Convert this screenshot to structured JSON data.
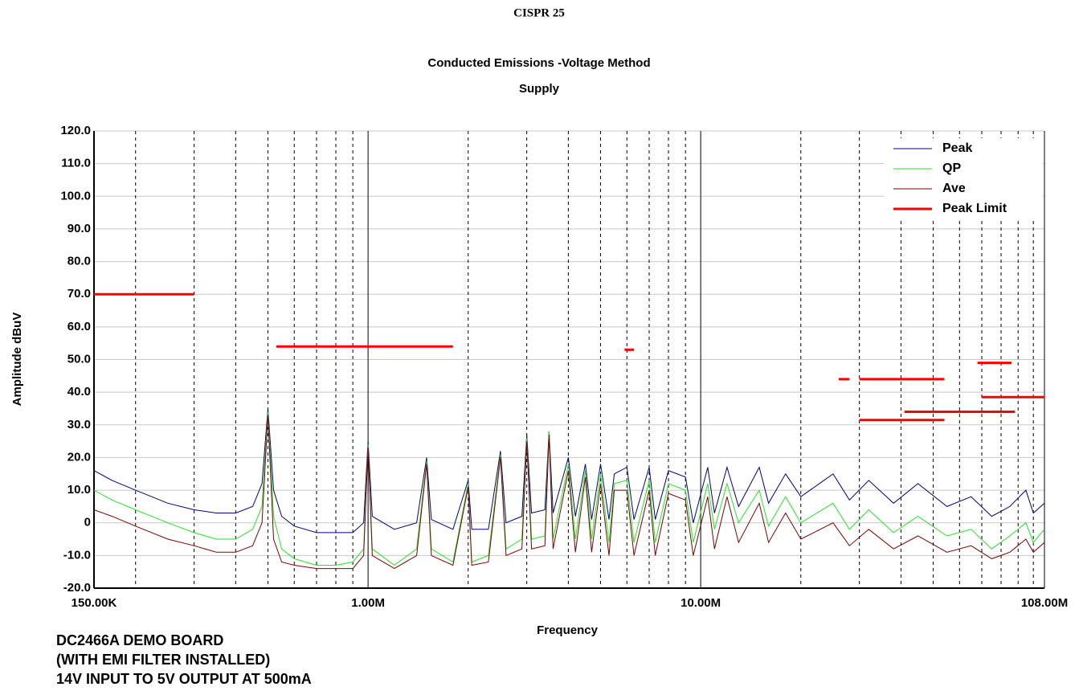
{
  "chart_data": {
    "type": "line",
    "title": "CISPR 25",
    "subtitle": "Conducted Emissions -Voltage Method",
    "subtitle2": "Supply",
    "x_label": "Frequency",
    "y_label": "Amplitude dBuV",
    "annotations": [
      "DC2466A DEMO BOARD",
      "(WITH EMI FILTER INSTALLED)",
      "14V INPUT TO 5V OUTPUT AT 500mA"
    ],
    "xscale": "log",
    "xlim": [
      150000,
      108000000
    ],
    "ylim": [
      -20,
      120
    ],
    "xticks": [
      {
        "value": 150000,
        "label": "150.00K"
      },
      {
        "value": 1000000,
        "label": "1.00M"
      },
      {
        "value": 10000000,
        "label": "10.00M"
      },
      {
        "value": 108000000,
        "label": "108.00M"
      }
    ],
    "x_minor_grid": [
      200000,
      300000,
      400000,
      500000,
      600000,
      700000,
      800000,
      900000,
      2000000,
      3000000,
      4000000,
      5000000,
      6000000,
      7000000,
      8000000,
      9000000,
      20000000,
      30000000,
      40000000,
      50000000,
      60000000,
      70000000,
      80000000,
      90000000,
      100000000
    ],
    "yticks": [
      {
        "value": -20,
        "label": "-20.0"
      },
      {
        "value": -10,
        "label": "-10.0"
      },
      0,
      {
        "value": 10,
        "label": "10.0"
      },
      {
        "value": 20,
        "label": "20.0"
      },
      {
        "value": 30,
        "label": "30.0"
      },
      {
        "value": 40,
        "label": "40.0"
      },
      {
        "value": 50,
        "label": "50.0"
      },
      {
        "value": 60,
        "label": "60.0"
      },
      {
        "value": 70,
        "label": "70.0"
      },
      {
        "value": 80,
        "label": "80.0"
      },
      {
        "value": 90,
        "label": "90.0"
      },
      {
        "value": 100,
        "label": "100.0"
      },
      {
        "value": 110,
        "label": "110.0"
      },
      {
        "value": 120,
        "label": "120.0"
      }
    ],
    "grid": true,
    "legend": "top-right",
    "x": [
      150000,
      170000,
      200000,
      250000,
      300000,
      350000,
      400000,
      450000,
      480000,
      500000,
      520000,
      550000,
      600000,
      700000,
      800000,
      900000,
      970000,
      1000000,
      1030000,
      1200000,
      1400000,
      1500000,
      1550000,
      1800000,
      2000000,
      2050000,
      2300000,
      2500000,
      2600000,
      2900000,
      3000000,
      3100000,
      3400000,
      3500000,
      3600000,
      4000000,
      4200000,
      4500000,
      4700000,
      5000000,
      5300000,
      5500000,
      6000000,
      6300000,
      7000000,
      7300000,
      8000000,
      9000000,
      9500000,
      10500000,
      11000000,
      12000000,
      13000000,
      15000000,
      16000000,
      18000000,
      20000000,
      25000000,
      28000000,
      32000000,
      38000000,
      45000000,
      55000000,
      65000000,
      75000000,
      85000000,
      95000000,
      100000000,
      108000000
    ],
    "series": [
      {
        "name": "Peak",
        "color": "#000080",
        "values": [
          16,
          13,
          10,
          6,
          4,
          3,
          3,
          5,
          12,
          35,
          10,
          2,
          -1,
          -3,
          -3,
          -3,
          0,
          25,
          2,
          -2,
          0,
          20,
          1,
          -2,
          13,
          -2,
          -2,
          22,
          0,
          2,
          27,
          3,
          4,
          28,
          3,
          20,
          2,
          18,
          1,
          18,
          1,
          15,
          17,
          1,
          17,
          1,
          16,
          14,
          0,
          17,
          3,
          17,
          5,
          17,
          6,
          15,
          8,
          15,
          7,
          13,
          6,
          12,
          5,
          8,
          2,
          5,
          10,
          3,
          6
        ]
      },
      {
        "name": "QP",
        "color": "#22e622",
        "values": [
          10,
          7,
          4,
          0,
          -3,
          -5,
          -5,
          -2,
          5,
          34,
          2,
          -8,
          -11,
          -13,
          -13,
          -12,
          -8,
          24,
          -8,
          -13,
          -8,
          19,
          -8,
          -12,
          12,
          -12,
          -10,
          21,
          -8,
          -5,
          26,
          -5,
          -4,
          28,
          -5,
          18,
          -5,
          16,
          -5,
          15,
          -6,
          12,
          13,
          -6,
          13,
          -6,
          12,
          10,
          -6,
          12,
          -2,
          12,
          0,
          10,
          -1,
          8,
          0,
          6,
          -2,
          4,
          -3,
          2,
          -4,
          -2,
          -8,
          -4,
          0,
          -6,
          -2
        ]
      },
      {
        "name": "Ave",
        "color": "#800000",
        "values": [
          4,
          2,
          -1,
          -5,
          -7,
          -9,
          -9,
          -7,
          0,
          33,
          -5,
          -12,
          -13,
          -14,
          -14,
          -14,
          -10,
          23,
          -10,
          -14,
          -10,
          18,
          -10,
          -13,
          11,
          -13,
          -12,
          20,
          -10,
          -8,
          25,
          -8,
          -7,
          27,
          -8,
          16,
          -9,
          14,
          -9,
          12,
          -10,
          10,
          10,
          -10,
          10,
          -10,
          9,
          7,
          -10,
          8,
          -8,
          8,
          -6,
          6,
          -6,
          3,
          -5,
          0,
          -7,
          -2,
          -8,
          -4,
          -9,
          -7,
          -11,
          -9,
          -5,
          -9,
          -6
        ]
      },
      {
        "name": "Peak Limit",
        "color": "#ff0000",
        "width": 3,
        "x": [
          150000,
          300000,
          null,
          530000,
          1800000,
          null,
          5900000,
          6300000,
          null,
          26000000,
          28000000,
          null,
          30000000,
          54000000,
          null,
          30000000,
          54000000,
          null,
          41000000,
          88000000,
          null,
          68000000,
          86000000,
          null,
          70000000,
          108000000
        ],
        "values": [
          70,
          70,
          null,
          54,
          54,
          null,
          53,
          53,
          null,
          44,
          44,
          null,
          44,
          44,
          null,
          31.5,
          31.5,
          null,
          34,
          34,
          null,
          49,
          49,
          null,
          38.5,
          38.5
        ]
      }
    ]
  }
}
